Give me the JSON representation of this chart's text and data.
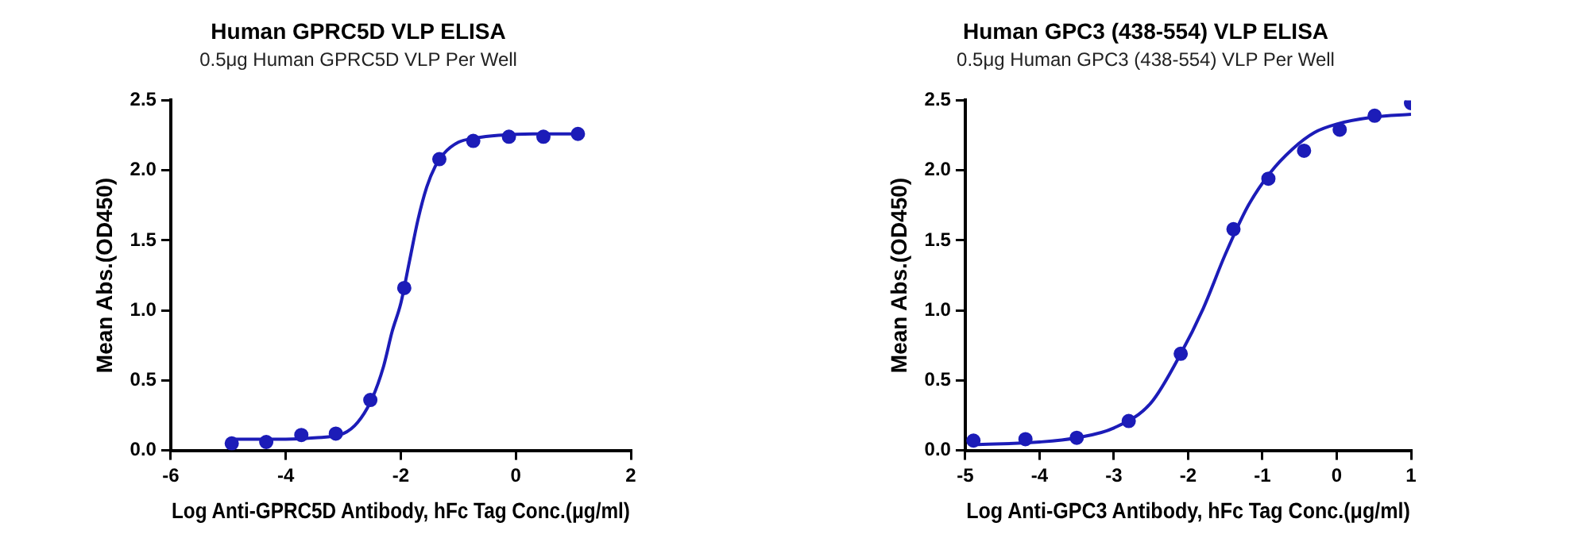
{
  "chart_data": [
    {
      "type": "scatter",
      "title": "Human GPRC5D VLP ELISA",
      "subtitle": "0.5μg Human GPRC5D VLP Per Well",
      "xlabel": "Log Anti-GPRC5D Antibody, hFc Tag Conc.(μg/ml)",
      "ylabel": "Mean Abs.(OD450)",
      "xlim": [
        -6,
        2
      ],
      "xticks": [
        -6,
        -4,
        -2,
        0,
        2
      ],
      "ylim": [
        0,
        2.5
      ],
      "yticks": [
        {
          "value": 0,
          "label": "0.0"
        },
        0.5,
        {
          "value": 1,
          "label": "1.0"
        },
        1.5,
        {
          "value": 2,
          "label": "2.0"
        },
        2.5
      ],
      "grid": false,
      "legend": false,
      "marker": "circle",
      "series": [
        {
          "type": "scatter",
          "color": "#1c1cb8",
          "x": [
            -4.94,
            -4.34,
            -3.73,
            -3.13,
            -2.53,
            -1.94,
            -1.33,
            -0.74,
            -0.12,
            0.48,
            1.08
          ],
          "values": [
            0.05,
            0.06,
            0.11,
            0.12,
            0.36,
            1.16,
            2.08,
            2.21,
            2.24,
            2.24,
            2.26
          ]
        },
        {
          "type": "line",
          "color": "#1c1cb8",
          "marker": "none",
          "line_style": "solid",
          "x": [
            -4.94,
            -4,
            -3.5,
            -3,
            -2.75,
            -2.5,
            -2.3,
            -2.15,
            -2,
            -1.85,
            -1.7,
            -1.55,
            -1.4,
            -1.25,
            -1,
            -0.7,
            -0.3,
            0.3,
            1.08
          ],
          "values": [
            0.08,
            0.08,
            0.09,
            0.12,
            0.2,
            0.37,
            0.6,
            0.85,
            1.05,
            1.35,
            1.65,
            1.88,
            2.03,
            2.12,
            2.2,
            2.23,
            2.25,
            2.26,
            2.26
          ]
        }
      ]
    },
    {
      "type": "scatter",
      "title": "Human GPC3 (438-554) VLP ELISA",
      "subtitle": "0.5μg Human GPC3 (438-554) VLP Per Well",
      "xlabel": "Log Anti-GPC3 Antibody, hFc Tag Conc.(μg/ml)",
      "ylabel": "Mean Abs.(OD450)",
      "xlim": [
        -5,
        1
      ],
      "xticks": [
        -5,
        -4,
        -3,
        -2,
        -1,
        0,
        1
      ],
      "ylim": [
        0,
        2.5
      ],
      "yticks": [
        {
          "value": 0,
          "label": "0.0"
        },
        0.5,
        {
          "value": 1,
          "label": "1.0"
        },
        1.5,
        {
          "value": 2,
          "label": "2.0"
        },
        2.5
      ],
      "grid": false,
      "legend": false,
      "marker": "circle",
      "series": [
        {
          "type": "scatter",
          "color": "#1c1cb8",
          "x": [
            -4.89,
            -4.19,
            -3.5,
            -2.8,
            -2.1,
            -1.39,
            -0.92,
            -0.44,
            0.04,
            0.51,
            1.0
          ],
          "values": [
            0.07,
            0.08,
            0.09,
            0.21,
            0.69,
            1.58,
            1.94,
            2.14,
            2.29,
            2.39,
            2.48
          ]
        },
        {
          "type": "line",
          "color": "#1c1cb8",
          "marker": "none",
          "line_style": "solid",
          "x": [
            -4.89,
            -4,
            -3.5,
            -3,
            -2.5,
            -2.1,
            -1.8,
            -1.5,
            -1.2,
            -0.9,
            -0.6,
            -0.3,
            0,
            0.5,
            1.0
          ],
          "values": [
            0.04,
            0.06,
            0.09,
            0.16,
            0.34,
            0.69,
            1.01,
            1.4,
            1.74,
            1.98,
            2.15,
            2.27,
            2.33,
            2.38,
            2.4
          ]
        }
      ]
    }
  ]
}
